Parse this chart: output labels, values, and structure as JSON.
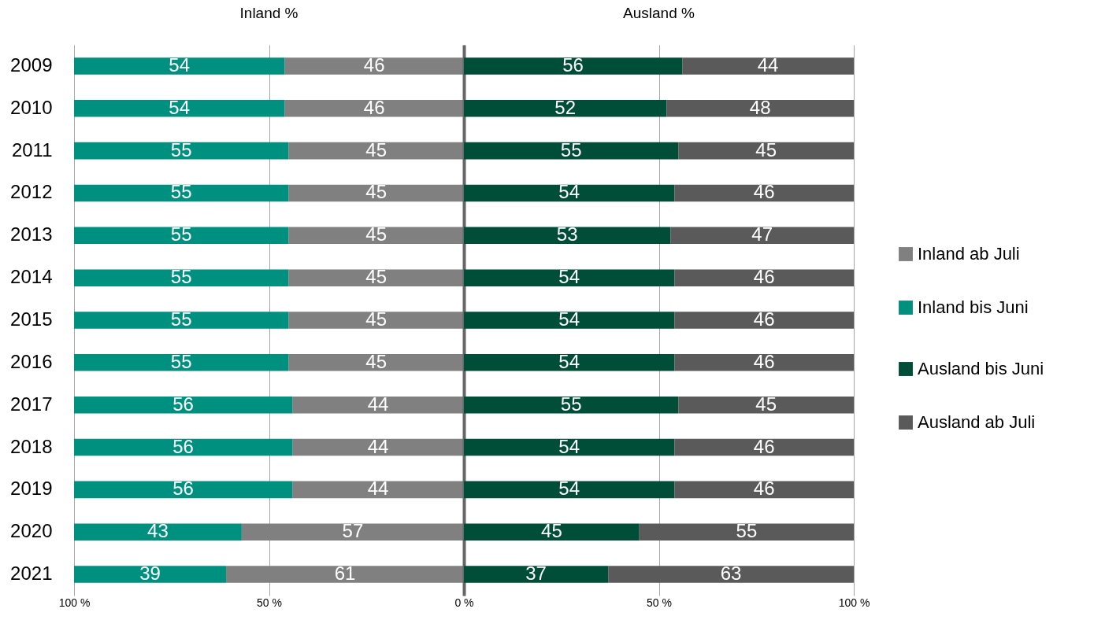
{
  "chart_data": [
    {
      "type": "bar",
      "orientation": "horizontal",
      "stacked": true,
      "title": "Inland %",
      "categories": [
        "2009",
        "2010",
        "2011",
        "2012",
        "2013",
        "2014",
        "2015",
        "2016",
        "2017",
        "2018",
        "2019",
        "2020",
        "2021"
      ],
      "series": [
        {
          "name": "Inland ab Juli",
          "color": "#808080",
          "values": [
            46,
            46,
            45,
            45,
            45,
            45,
            45,
            45,
            44,
            44,
            44,
            57,
            61
          ]
        },
        {
          "name": "Inland bis Juni",
          "color": "#009080",
          "values": [
            54,
            54,
            55,
            55,
            55,
            55,
            55,
            55,
            56,
            56,
            56,
            43,
            39
          ]
        }
      ],
      "xlim": [
        100,
        0
      ],
      "xticks": [
        {
          "value": 100,
          "label": "100 %"
        },
        {
          "value": 50,
          "label": "50 %"
        },
        {
          "value": 0,
          "label": "0 %"
        }
      ],
      "grid": "x",
      "legend": "right",
      "data_labels": true
    },
    {
      "type": "bar",
      "orientation": "horizontal",
      "stacked": true,
      "title": "Ausland %",
      "categories": [
        "2009",
        "2010",
        "2011",
        "2012",
        "2013",
        "2014",
        "2015",
        "2016",
        "2017",
        "2018",
        "2019",
        "2020",
        "2021"
      ],
      "series": [
        {
          "name": "Ausland bis Juni",
          "color": "#004d38",
          "values": [
            56,
            52,
            55,
            54,
            53,
            54,
            54,
            54,
            55,
            54,
            54,
            45,
            37
          ]
        },
        {
          "name": "Ausland ab Juli",
          "color": "#5a5a5a",
          "values": [
            44,
            48,
            45,
            46,
            47,
            46,
            46,
            46,
            45,
            46,
            46,
            55,
            63
          ]
        }
      ],
      "xlim": [
        0,
        100
      ],
      "xticks": [
        {
          "value": 0,
          "label": null
        },
        {
          "value": 50,
          "label": "50 %"
        },
        {
          "value": 100,
          "label": "100 %"
        }
      ],
      "grid": "x",
      "legend": "right",
      "data_labels": true,
      "tick_labels": "x"
    }
  ]
}
